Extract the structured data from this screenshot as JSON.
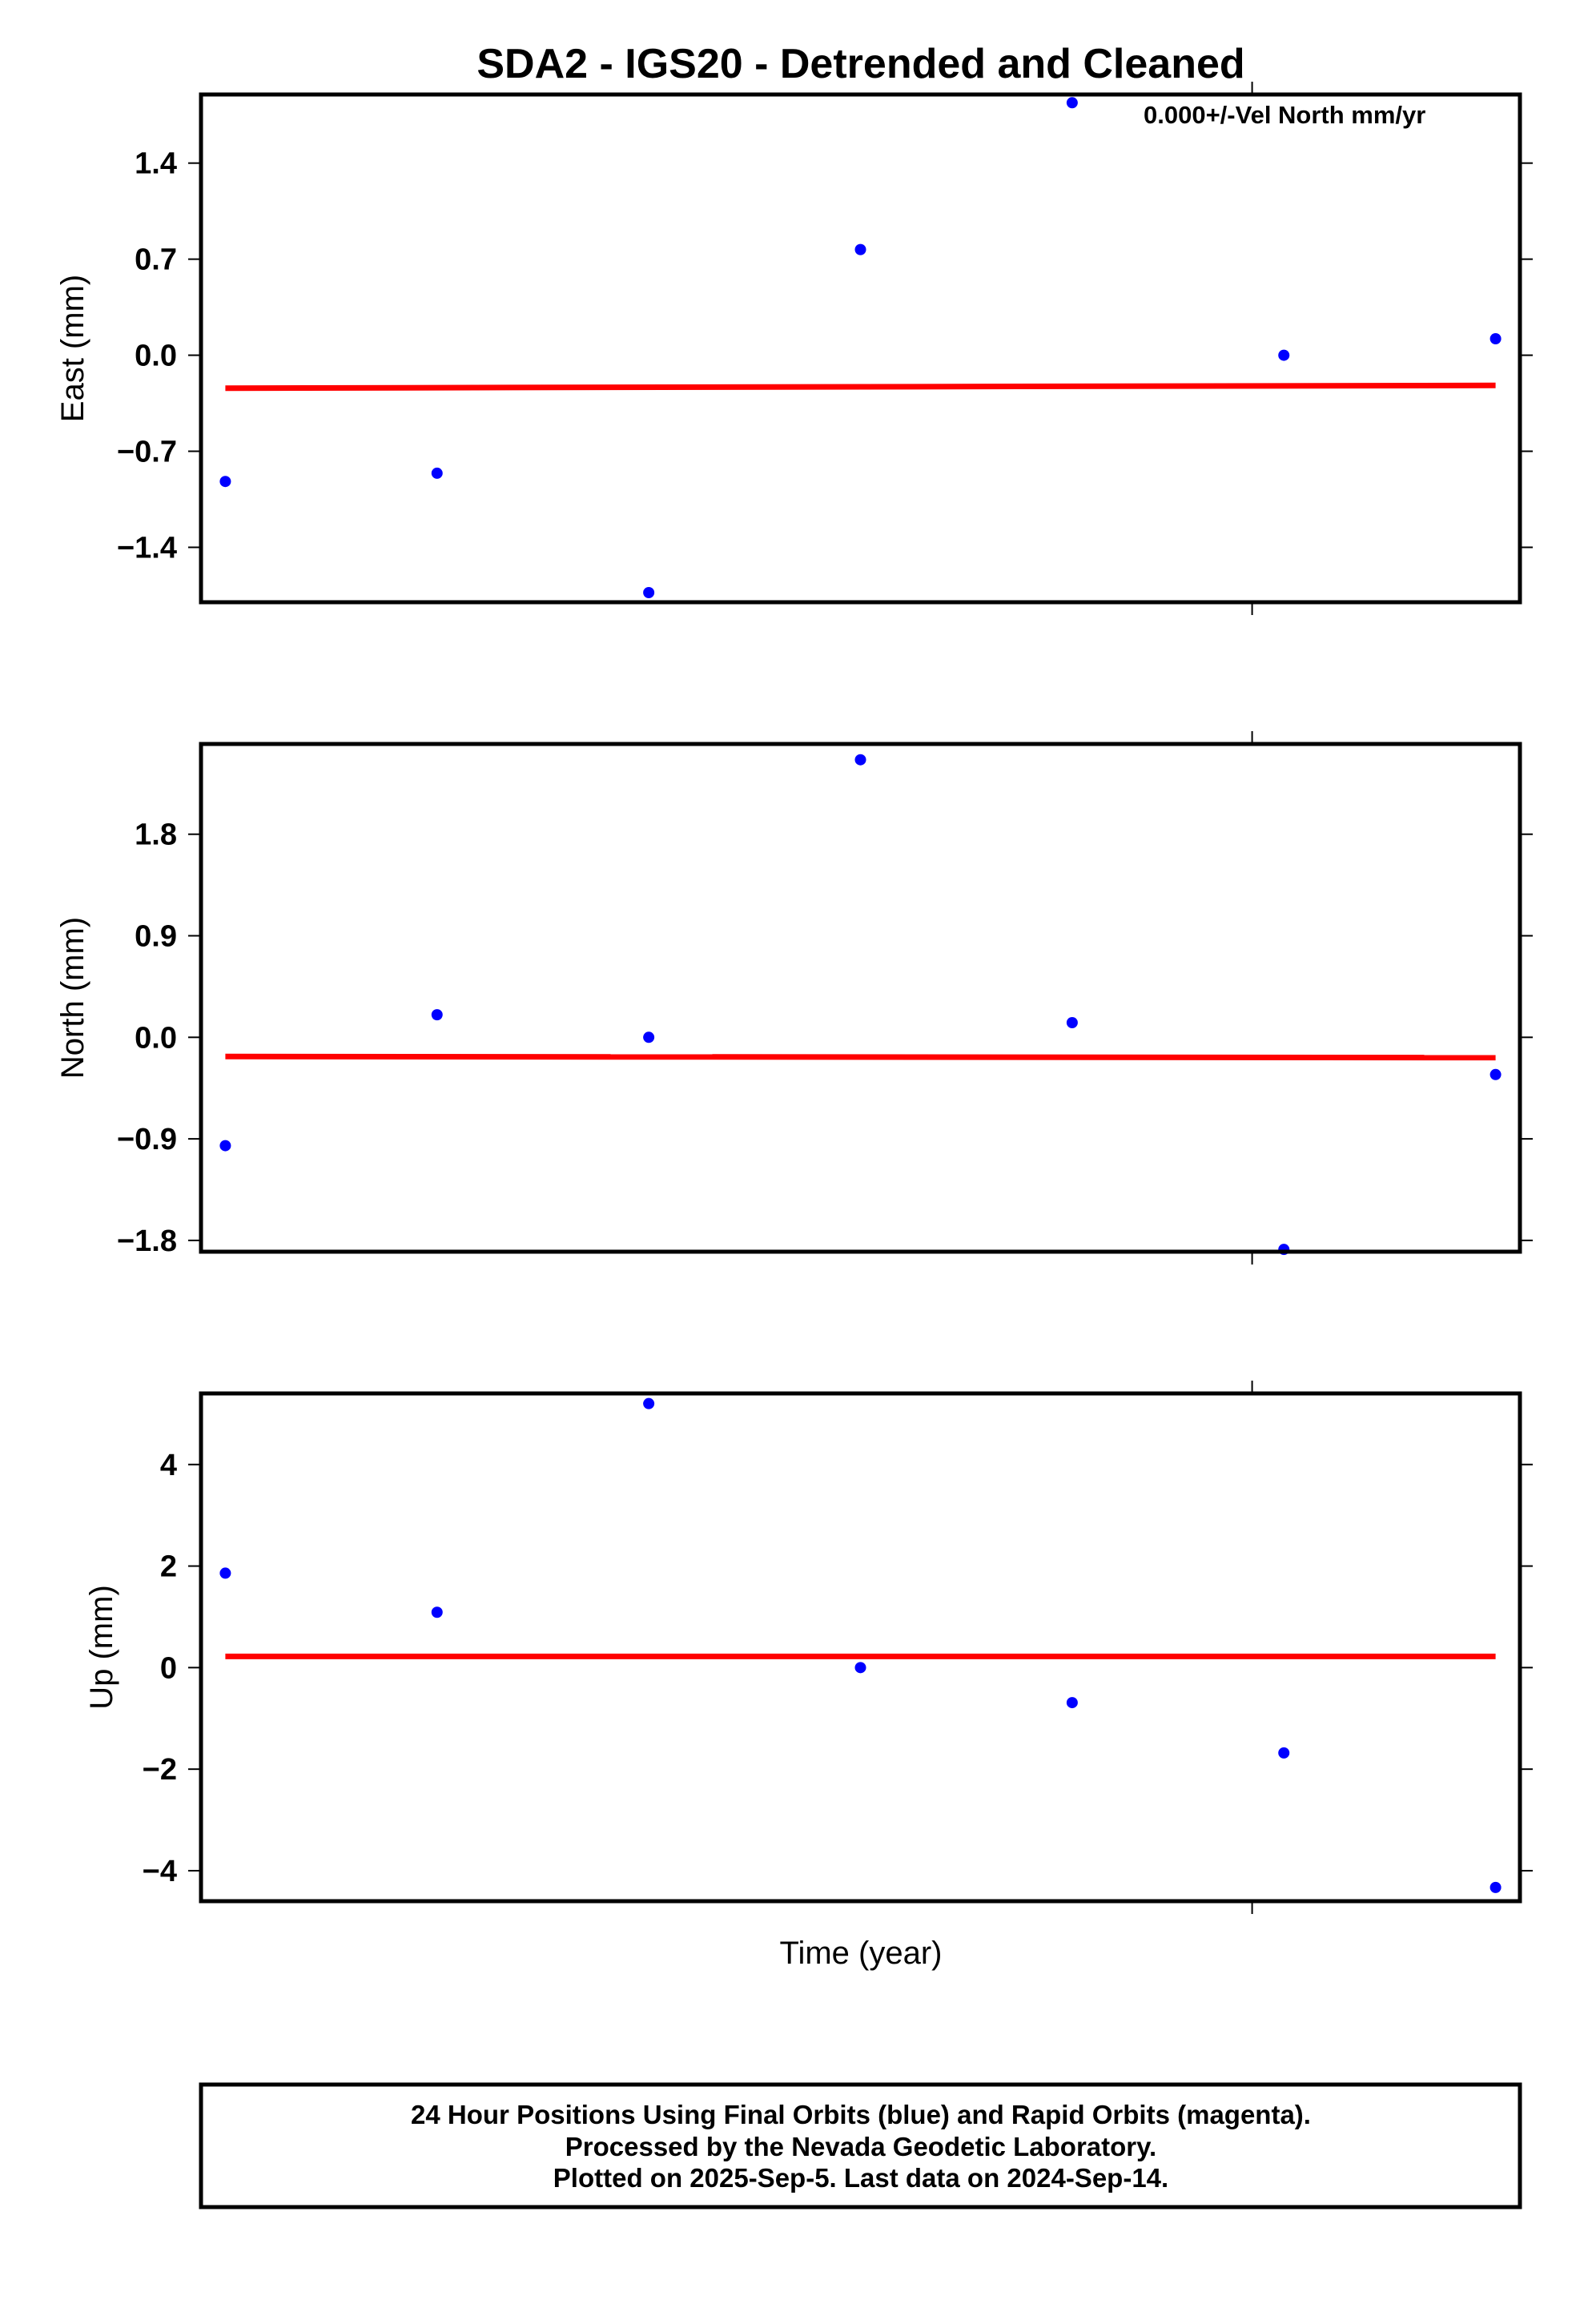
{
  "title": "SDA2 - IGS20 - Detrended and Cleaned",
  "xlabel": "Time (year)",
  "colors": {
    "points": "#0000ff",
    "fit": "#ff0000",
    "frame": "#000000"
  },
  "footer": {
    "line1": "24 Hour Positions Using Final Orbits (blue) and Rapid Orbits (magenta).",
    "line2": "Processed by the Nevada Geodetic Laboratory.",
    "line3": "Plotted on 2025-Sep-5. Last data on 2024-Sep-14."
  },
  "chart_data": [
    {
      "type": "scatter",
      "ylabel": "East (mm)",
      "note": "0.000+/-Vel North mm/yr",
      "ylim": [
        -1.8,
        1.9
      ],
      "yticks": [
        1.4,
        0.7,
        0.0,
        -0.7,
        -1.4
      ],
      "ytick_labels": [
        "1.4",
        "0.7",
        "0.0",
        "−0.7",
        "−1.4"
      ],
      "x": [
        1,
        2,
        3,
        4,
        5,
        6,
        7
      ],
      "values": [
        -0.92,
        -0.86,
        -1.73,
        0.77,
        1.84,
        0.0,
        0.12
      ],
      "fit": [
        -0.24,
        -0.22
      ]
    },
    {
      "type": "scatter",
      "ylabel": "North (mm)",
      "note": "",
      "ylim": [
        -1.9,
        2.6
      ],
      "yticks": [
        1.8,
        0.9,
        0.0,
        -0.9,
        -1.8
      ],
      "ytick_labels": [
        "1.8",
        "0.9",
        "0.0",
        "−0.9",
        "−1.8"
      ],
      "x": [
        1,
        2,
        3,
        4,
        5,
        6,
        7
      ],
      "values": [
        -0.96,
        0.2,
        0.0,
        2.46,
        0.13,
        -1.88,
        -0.33
      ],
      "fit": [
        -0.17,
        -0.18
      ]
    },
    {
      "type": "scatter",
      "ylabel": "Up (mm)",
      "note": "",
      "ylim": [
        -4.6,
        5.4
      ],
      "yticks": [
        4,
        2,
        0,
        -2,
        -4
      ],
      "ytick_labels": [
        "4",
        "2",
        "0",
        "−2",
        "−4"
      ],
      "x": [
        1,
        2,
        3,
        4,
        5,
        6,
        7
      ],
      "values": [
        1.86,
        1.09,
        5.2,
        0.0,
        -0.69,
        -1.68,
        -4.33
      ],
      "fit": [
        0.22,
        0.22
      ]
    }
  ]
}
